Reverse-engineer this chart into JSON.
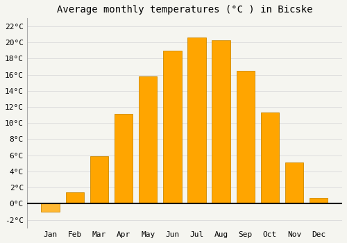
{
  "title": "Average monthly temperatures (°C ) in Bicske",
  "months": [
    "Jan",
    "Feb",
    "Mar",
    "Apr",
    "May",
    "Jun",
    "Jul",
    "Aug",
    "Sep",
    "Oct",
    "Nov",
    "Dec"
  ],
  "values": [
    -1.0,
    1.4,
    5.9,
    11.1,
    15.8,
    19.0,
    20.6,
    20.3,
    16.5,
    11.3,
    5.1,
    0.7
  ],
  "bar_color_positive": "#FFA500",
  "bar_color_negative": "#FFB833",
  "bar_edge_color": "#CC8800",
  "ylim": [
    -3,
    23
  ],
  "yticks": [
    -2,
    0,
    2,
    4,
    6,
    8,
    10,
    12,
    14,
    16,
    18,
    20,
    22
  ],
  "ytick_labels": [
    "-2°C",
    "0°C",
    "2°C",
    "4°C",
    "6°C",
    "8°C",
    "10°C",
    "12°C",
    "14°C",
    "16°C",
    "18°C",
    "20°C",
    "22°C"
  ],
  "background_color": "#f5f5f0",
  "plot_bg_color": "#f5f5f0",
  "grid_color": "#dddddd",
  "title_fontsize": 10,
  "tick_fontsize": 8,
  "bar_width": 0.75
}
